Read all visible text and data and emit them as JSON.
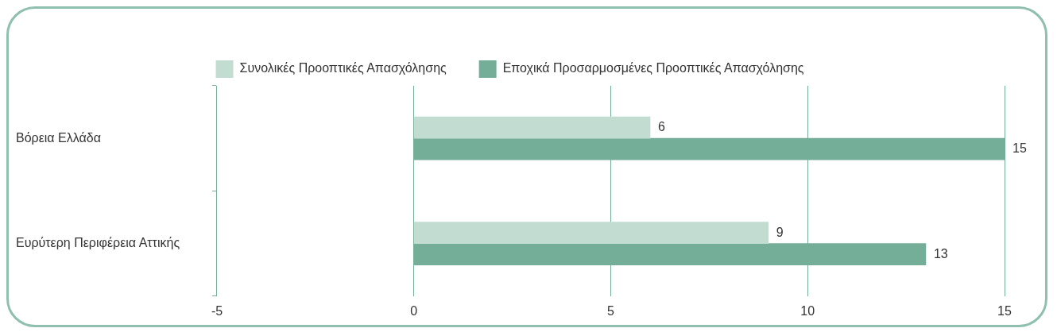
{
  "chart_data": {
    "type": "bar",
    "orientation": "horizontal",
    "categories": [
      "Βόρεια Ελλάδα",
      "Ευρύτερη Περιφέρεια Αττικής"
    ],
    "series": [
      {
        "name": "Συνολικές Προοπτικές Απασχόλησης",
        "color": "#c3dcd2",
        "values": [
          6,
          9
        ]
      },
      {
        "name": "Εποχικά Προσαρμοσμένες Προοπτικές Απασχόλησης",
        "color": "#74ae98",
        "values": [
          15,
          13
        ]
      }
    ],
    "xlim": [
      -5,
      15
    ],
    "xticks": [
      -5,
      0,
      5,
      10,
      15
    ],
    "grid": "x",
    "legend": "top",
    "data_labels": true
  }
}
